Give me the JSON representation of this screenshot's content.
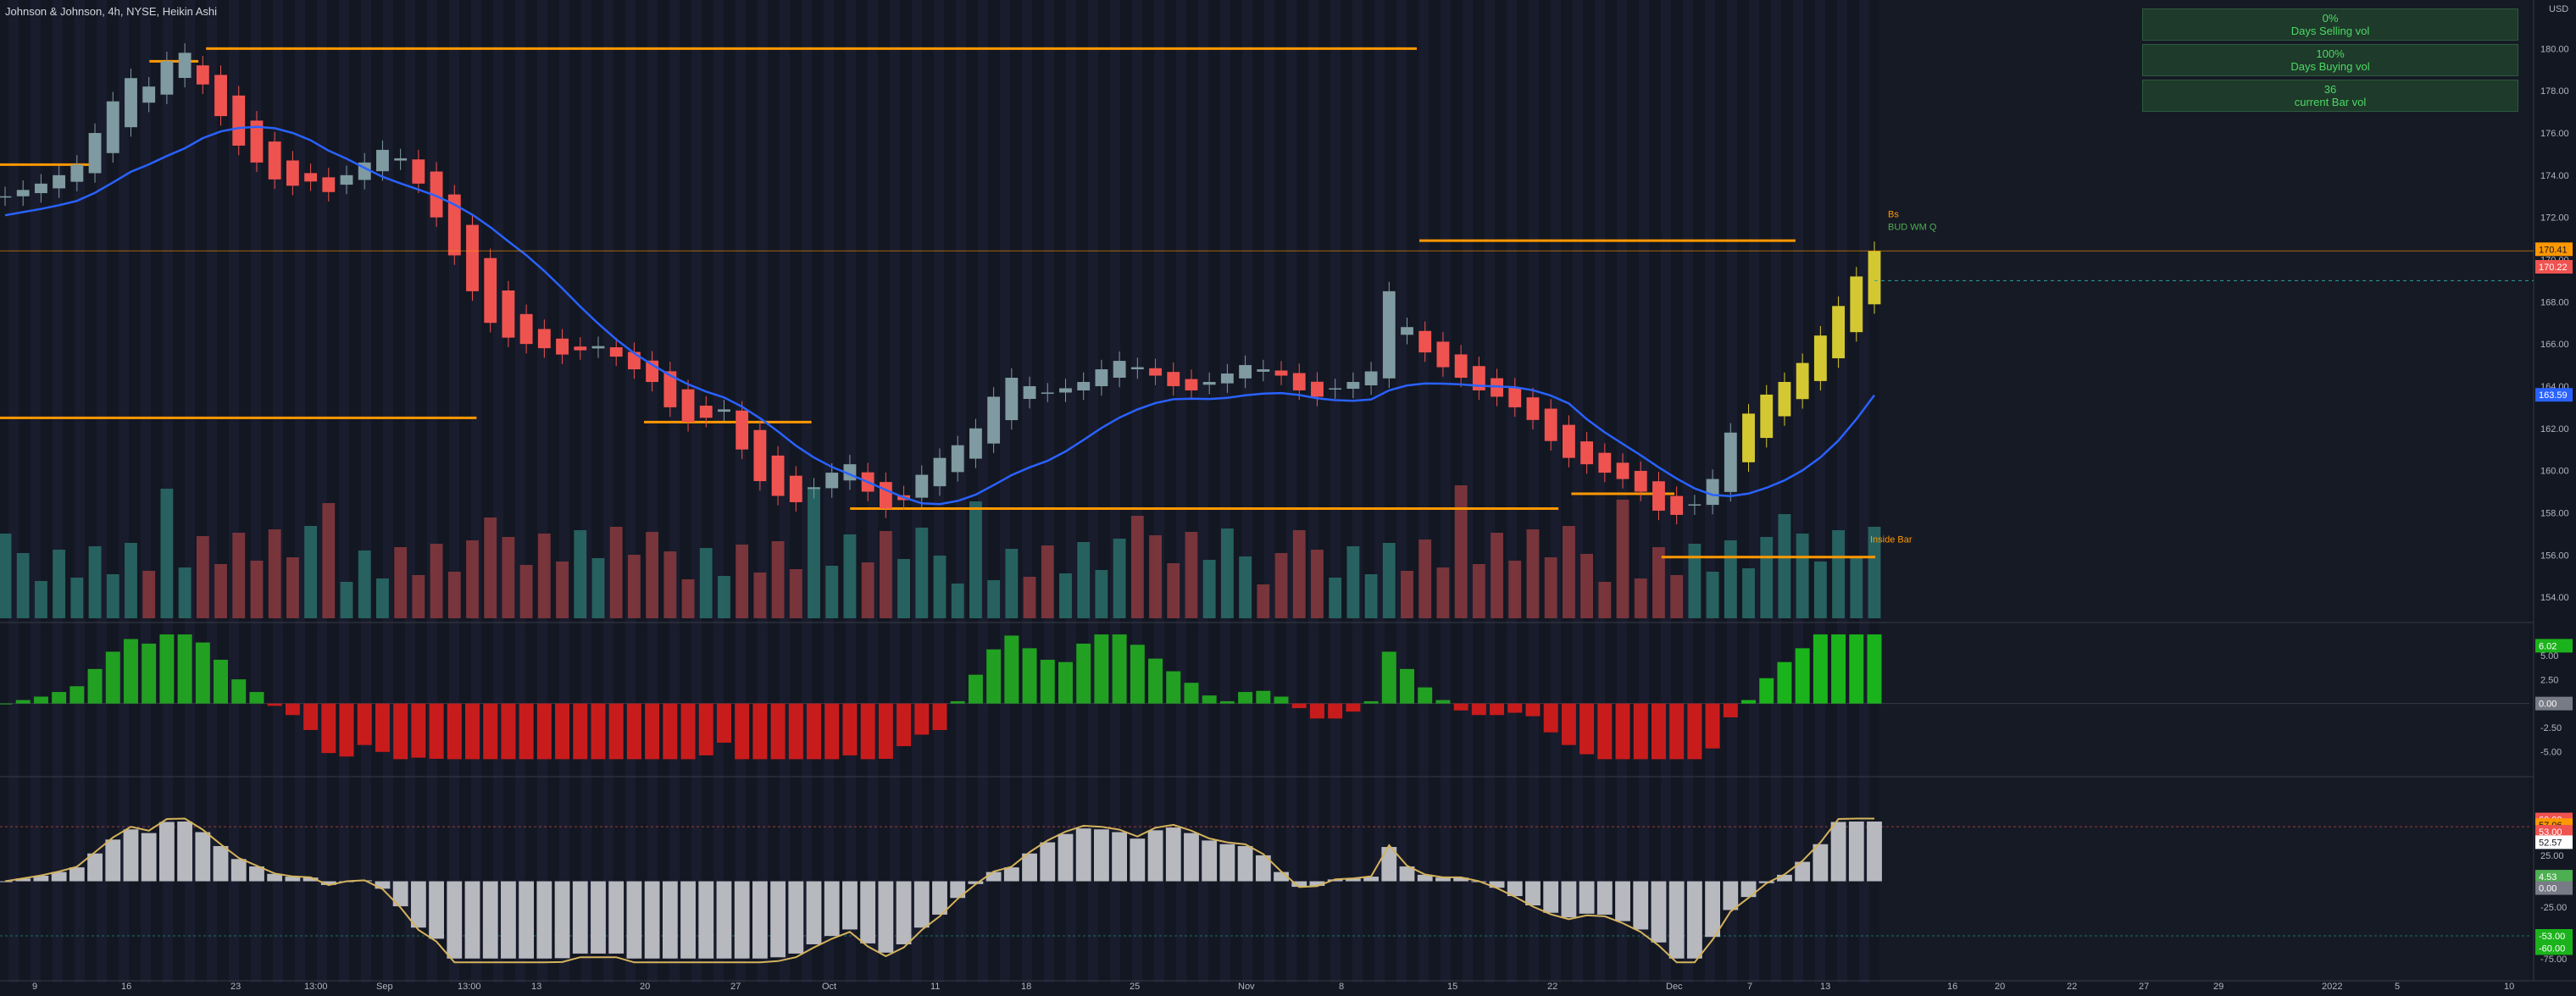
{
  "header": {
    "title": "Johnson & Johnson, 4h, NYSE, Heikin Ashi",
    "currency": "USD"
  },
  "info_panel": [
    {
      "value": "0%",
      "label": "Days Selling vol"
    },
    {
      "value": "100%",
      "label": "Days Buying vol"
    },
    {
      "value": "36",
      "label": "current Bar vol"
    }
  ],
  "annotations": {
    "inside_bar": "Inside Bar",
    "bull_label": "Bs",
    "top_label": "BUD WM Q"
  },
  "colors": {
    "background": "#131722",
    "up": "#26a69a",
    "down": "#ef5350",
    "ma": "#2962ff",
    "level": "#ff9800"
  },
  "chart_data": [
    {
      "type": "candlestick",
      "name": "price",
      "y_ticks": [
        180.0,
        178.0,
        176.0,
        174.0,
        172.0,
        170.0,
        168.0,
        166.0,
        164.0,
        162.0,
        160.0,
        158.0,
        156.0,
        154.0
      ],
      "ylim": [
        153,
        181.5
      ],
      "last_price": 170.41,
      "prev_price": 170.22,
      "ma_value": 163.59,
      "x_ticks": [
        "9",
        "16",
        "23",
        "13:00",
        "Sep",
        "13:00",
        "13",
        "20",
        "27",
        "Oct",
        "11",
        "18",
        "25",
        "Nov",
        "8",
        "15",
        "22",
        "Dec",
        "7",
        "13",
        "16",
        "20",
        "22",
        "27",
        "29",
        "2022",
        "5",
        "10"
      ],
      "close_approx": [
        173.0,
        173.3,
        173.6,
        174.0,
        174.5,
        176.0,
        177.5,
        178.6,
        178.2,
        179.4,
        179.8,
        178.3,
        176.8,
        175.4,
        174.6,
        173.8,
        173.5,
        173.7,
        173.2,
        174.0,
        174.6,
        175.2,
        174.8,
        173.6,
        172.0,
        170.2,
        168.5,
        167.0,
        166.3,
        166.0,
        165.8,
        165.5,
        165.7,
        165.9,
        165.4,
        164.8,
        164.2,
        163.0,
        162.3,
        162.5,
        162.9,
        161.0,
        159.5,
        158.8,
        158.5,
        159.2,
        159.9,
        160.3,
        159.0,
        158.2,
        158.6,
        159.8,
        160.6,
        161.2,
        162.0,
        163.5,
        164.4,
        164.0,
        163.7,
        163.9,
        164.2,
        164.8,
        165.2,
        164.9,
        164.5,
        164.0,
        163.8,
        164.2,
        164.6,
        165.0,
        164.8,
        164.5,
        163.8,
        163.5,
        163.9,
        164.2,
        164.7,
        168.5,
        166.8,
        165.6,
        164.9,
        164.4,
        163.8,
        163.5,
        163.0,
        162.4,
        161.4,
        160.6,
        160.3,
        159.9,
        159.6,
        159.0,
        158.1,
        157.9,
        158.4,
        159.6,
        161.8,
        162.7,
        163.6,
        164.2,
        165.1,
        166.4,
        167.8,
        169.2,
        170.41
      ],
      "levels": [
        {
          "y": 180.0,
          "x0": 0.08,
          "x1": 0.55
        },
        {
          "y": 174.5,
          "x0": 0.0,
          "x1": 0.037
        },
        {
          "y": 179.4,
          "x0": 0.058,
          "x1": 0.077
        },
        {
          "y": 162.5,
          "x0": 0.0,
          "x1": 0.185
        },
        {
          "y": 162.3,
          "x0": 0.25,
          "x1": 0.315
        },
        {
          "y": 158.2,
          "x0": 0.33,
          "x1": 0.605
        },
        {
          "y": 170.9,
          "x0": 0.551,
          "x1": 0.697
        },
        {
          "y": 158.9,
          "x0": 0.61,
          "x1": 0.65
        },
        {
          "y": 155.9,
          "x0": 0.645,
          "x1": 0.728
        }
      ]
    },
    {
      "type": "bar",
      "name": "momentum histogram",
      "y_ticks": [
        5.0,
        2.5,
        0.0,
        -2.5,
        -5.0
      ],
      "ylim": [
        -7,
        8
      ],
      "last_value": 6.02,
      "zero_value": 0.0
    },
    {
      "type": "bar",
      "name": "oscillator",
      "y_ticks": [
        25.0,
        0.0,
        -25.0,
        -75.0
      ],
      "ylim": [
        -90,
        95
      ],
      "value_tags": [
        "60.00",
        "57.06",
        "53.00",
        "52.57",
        "4.53",
        "0.00",
        "-53.00",
        "-60.00"
      ]
    }
  ]
}
